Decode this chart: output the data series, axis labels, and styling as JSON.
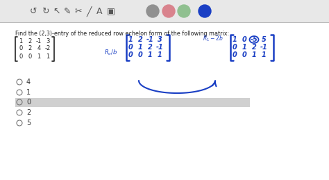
{
  "bg_color": "#f0f0f0",
  "content_bg": "#ffffff",
  "toolbar_bg": "#e8e8e8",
  "circle_colors": [
    "#909090",
    "#d9838d",
    "#90c090",
    "#1a3fc4"
  ],
  "question_text": "Find the (2,3)-entry of the reduced row echelon form of the following matrix:",
  "radio_options": [
    "4",
    "1",
    "0",
    "2",
    "5"
  ],
  "selected_option": "0",
  "selected_bg": "#d0d0d0",
  "handwriting_color": "#1a3fc4",
  "black_color": "#222222",
  "option_text_color": "#333333",
  "toolbar_icon_color": "#555555",
  "figw": 4.74,
  "figh": 2.59,
  "dpi": 100
}
